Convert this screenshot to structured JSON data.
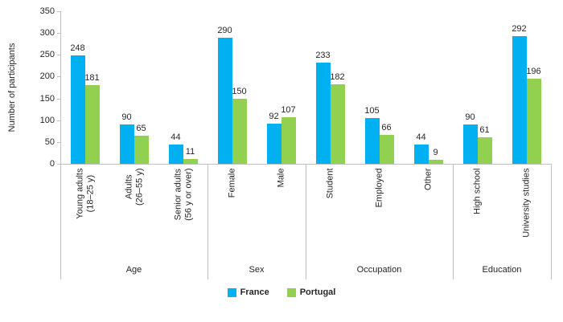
{
  "chart_data": {
    "type": "bar",
    "title": "",
    "ylabel": "Number of participants",
    "xlabel": "",
    "ylim": [
      0,
      350
    ],
    "yticks": [
      0,
      50,
      100,
      150,
      200,
      250,
      300,
      350
    ],
    "grid": false,
    "legend_position": "bottom",
    "groups": [
      {
        "label": "Age",
        "categories": [
          "Young adults\n(18–25 y)",
          "Adults\n(26–55 y)",
          "Senior adults\n(56 y or over)"
        ]
      },
      {
        "label": "Sex",
        "categories": [
          "Female",
          "Male"
        ]
      },
      {
        "label": "Occupation",
        "categories": [
          "Student",
          "Employed",
          "Other"
        ]
      },
      {
        "label": "Education",
        "categories": [
          "High school",
          "University studies"
        ]
      }
    ],
    "series": [
      {
        "name": "France",
        "color": "#00b0f0",
        "values": [
          248,
          90,
          44,
          290,
          92,
          233,
          105,
          44,
          90,
          292
        ]
      },
      {
        "name": "Portugal",
        "color": "#92d050",
        "values": [
          181,
          65,
          11,
          150,
          107,
          182,
          66,
          9,
          61,
          196
        ]
      }
    ]
  }
}
